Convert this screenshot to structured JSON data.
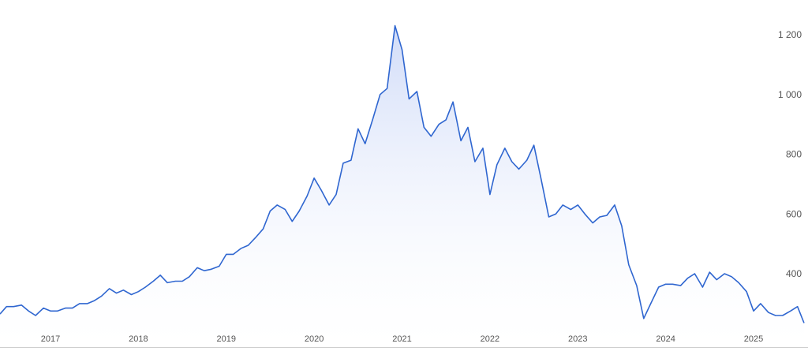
{
  "colors": {
    "line": "#2f66d0",
    "fill_top": "#c9d6f7",
    "fill_bottom": "#ffffff",
    "axis": "#cfcfcf",
    "tick_text": "#555555"
  },
  "chart_data": {
    "type": "area",
    "title": "",
    "xlabel": "",
    "ylabel": "",
    "xlim": [
      2016.4,
      2025.6
    ],
    "ylim": [
      200,
      1300
    ],
    "grid": false,
    "y_ticks": [
      {
        "value": 400,
        "label": "400"
      },
      {
        "value": 600,
        "label": "600"
      },
      {
        "value": 800,
        "label": "800"
      },
      {
        "value": 1000,
        "label": "1 000"
      },
      {
        "value": 1200,
        "label": "1 200"
      }
    ],
    "x_ticks": [
      {
        "value": 2017,
        "label": "2017"
      },
      {
        "value": 2018,
        "label": "2018"
      },
      {
        "value": 2019,
        "label": "2019"
      },
      {
        "value": 2020,
        "label": "2020"
      },
      {
        "value": 2021,
        "label": "2021"
      },
      {
        "value": 2022,
        "label": "2022"
      },
      {
        "value": 2023,
        "label": "2023"
      },
      {
        "value": 2024,
        "label": "2024"
      },
      {
        "value": 2025,
        "label": "2025"
      }
    ],
    "series": [
      {
        "x": [
          2016.42,
          2016.5,
          2016.58,
          2016.67,
          2016.75,
          2016.83,
          2016.92,
          2017.0,
          2017.08,
          2017.17,
          2017.25,
          2017.33,
          2017.42,
          2017.5,
          2017.58,
          2017.67,
          2017.75,
          2017.83,
          2017.92,
          2018.0,
          2018.08,
          2018.17,
          2018.25,
          2018.33,
          2018.42,
          2018.5,
          2018.58,
          2018.67,
          2018.75,
          2018.83,
          2018.92,
          2019.0,
          2019.08,
          2019.17,
          2019.25,
          2019.33,
          2019.42,
          2019.5,
          2019.58,
          2019.67,
          2019.75,
          2019.83,
          2019.92,
          2020.0,
          2020.08,
          2020.17,
          2020.25,
          2020.33,
          2020.42,
          2020.5,
          2020.58,
          2020.67,
          2020.75,
          2020.83,
          2020.92,
          2021.0,
          2021.08,
          2021.17,
          2021.25,
          2021.33,
          2021.42,
          2021.5,
          2021.58,
          2021.67,
          2021.75,
          2021.83,
          2021.92,
          2022.0,
          2022.08,
          2022.17,
          2022.25,
          2022.33,
          2022.42,
          2022.5,
          2022.58,
          2022.67,
          2022.75,
          2022.83,
          2022.92,
          2023.0,
          2023.08,
          2023.17,
          2023.25,
          2023.33,
          2023.42,
          2023.5,
          2023.58,
          2023.67,
          2023.75,
          2023.83,
          2023.92,
          2024.0,
          2024.08,
          2024.17,
          2024.25,
          2024.33,
          2024.42,
          2024.5,
          2024.58,
          2024.67,
          2024.75,
          2024.83,
          2024.92,
          2025.0,
          2025.08,
          2025.17,
          2025.25,
          2025.33,
          2025.42,
          2025.5,
          2025.58
        ],
        "values": [
          265,
          290,
          290,
          295,
          275,
          260,
          285,
          275,
          275,
          285,
          285,
          300,
          300,
          310,
          325,
          350,
          335,
          345,
          330,
          340,
          355,
          375,
          395,
          370,
          375,
          375,
          390,
          420,
          410,
          415,
          425,
          465,
          465,
          485,
          495,
          520,
          550,
          610,
          630,
          615,
          575,
          610,
          660,
          720,
          680,
          630,
          665,
          770,
          780,
          885,
          835,
          920,
          1000,
          1020,
          1230,
          1150,
          985,
          1010,
          890,
          860,
          900,
          915,
          975,
          845,
          890,
          775,
          820,
          665,
          765,
          820,
          775,
          750,
          780,
          830,
          720,
          590,
          600,
          630,
          615,
          630,
          600,
          570,
          590,
          595,
          630,
          560,
          430,
          360,
          250,
          300,
          355,
          365,
          365,
          360,
          385,
          400,
          355,
          405,
          380,
          400,
          390,
          370,
          340,
          275,
          300,
          270,
          260,
          260,
          275,
          290,
          235
        ]
      }
    ]
  }
}
